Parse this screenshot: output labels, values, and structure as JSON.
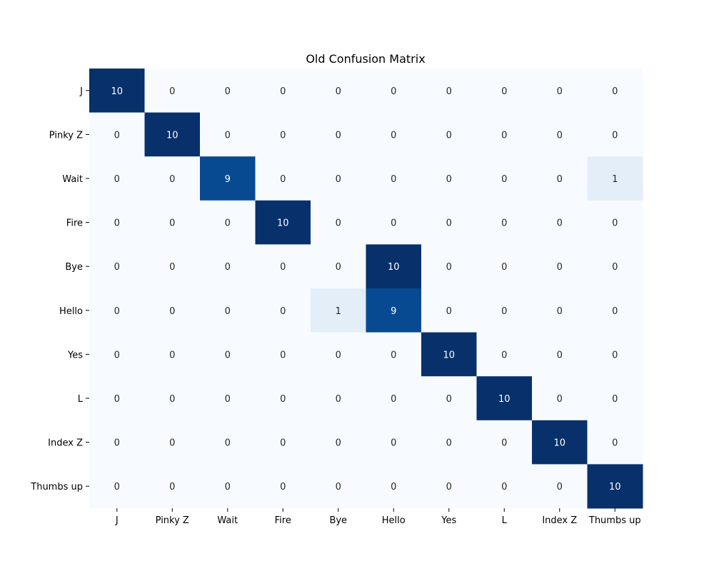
{
  "chart_data": {
    "type": "heatmap",
    "title": "Old Confusion Matrix",
    "xlabel": "",
    "ylabel": "",
    "x_categories": [
      "J",
      "Pinky Z",
      "Wait",
      "Fire",
      "Bye",
      "Hello",
      "Yes",
      "L",
      "Index Z",
      "Thumbs up"
    ],
    "y_categories": [
      "J",
      "Pinky Z",
      "Wait",
      "Fire",
      "Bye",
      "Hello",
      "Yes",
      "L",
      "Index Z",
      "Thumbs up"
    ],
    "values": [
      [
        10,
        0,
        0,
        0,
        0,
        0,
        0,
        0,
        0,
        0
      ],
      [
        0,
        10,
        0,
        0,
        0,
        0,
        0,
        0,
        0,
        0
      ],
      [
        0,
        0,
        9,
        0,
        0,
        0,
        0,
        0,
        0,
        1
      ],
      [
        0,
        0,
        0,
        10,
        0,
        0,
        0,
        0,
        0,
        0
      ],
      [
        0,
        0,
        0,
        0,
        0,
        10,
        0,
        0,
        0,
        0
      ],
      [
        0,
        0,
        0,
        0,
        1,
        9,
        0,
        0,
        0,
        0
      ],
      [
        0,
        0,
        0,
        0,
        0,
        0,
        10,
        0,
        0,
        0
      ],
      [
        0,
        0,
        0,
        0,
        0,
        0,
        0,
        10,
        0,
        0
      ],
      [
        0,
        0,
        0,
        0,
        0,
        0,
        0,
        0,
        10,
        0
      ],
      [
        0,
        0,
        0,
        0,
        0,
        0,
        0,
        0,
        0,
        10
      ]
    ],
    "colormap": "Blues",
    "value_range": [
      0,
      10
    ],
    "colorbar": false,
    "grid": false,
    "annotations": true
  }
}
